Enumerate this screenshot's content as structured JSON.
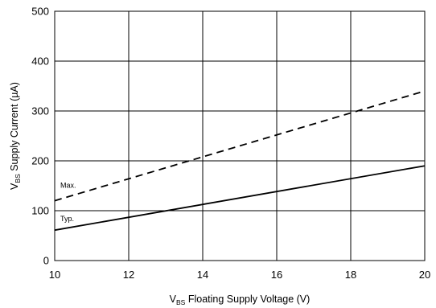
{
  "chart_data": {
    "type": "line",
    "xlabel": {
      "main": "V",
      "sub": "BS",
      "rest": " Floating Supply Voltage (V)"
    },
    "ylabel": {
      "main": "V",
      "sub": "BS",
      "rest": " Supply Current (µA)"
    },
    "xlim": [
      10,
      20
    ],
    "ylim": [
      0,
      500
    ],
    "x_ticks": [
      10,
      12,
      14,
      16,
      18,
      20
    ],
    "y_ticks": [
      0,
      100,
      200,
      300,
      400,
      500
    ],
    "grid": true,
    "series": [
      {
        "name": "Max.",
        "style": "dashed",
        "x": [
          10,
          20
        ],
        "y": [
          120,
          340
        ]
      },
      {
        "name": "Typ.",
        "style": "solid",
        "x": [
          10,
          20
        ],
        "y": [
          61,
          190
        ]
      }
    ]
  }
}
